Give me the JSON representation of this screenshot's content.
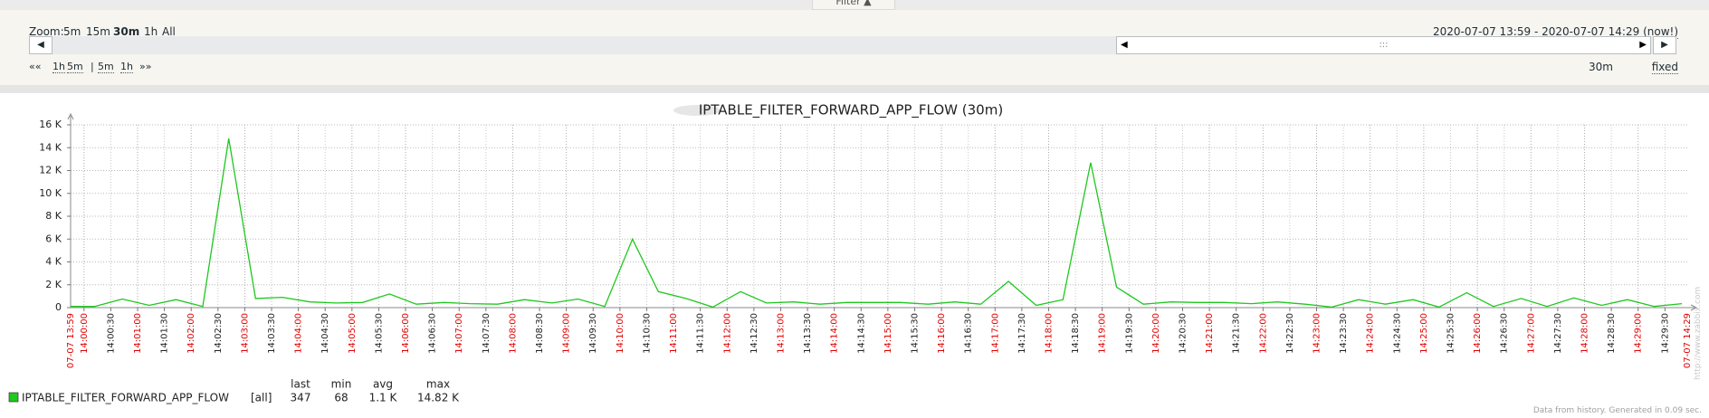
{
  "ui": {
    "filter_tab": "Filter ▲",
    "zoom_label": "Zoom:",
    "zoom_options": [
      "5m",
      "15m",
      "30m",
      "1h",
      "All"
    ],
    "zoom_active": 2,
    "range_from": "2020-07-07 13:59",
    "range_sep": " - ",
    "range_to": "2020-07-07 14:29",
    "range_now": "(now!)",
    "nav": [
      "««",
      "1h",
      "5m",
      "|",
      "5m",
      "1h",
      "»»"
    ],
    "period": "30m",
    "mode": "fixed",
    "footer": "Data from history. Generated in 0.09 sec.",
    "watermark": "http://www.zabbix.com"
  },
  "chart_data": {
    "type": "line",
    "title": "IPTABLE_FILTER_FORWARD_APP_FLOW (30m)",
    "x": [
      "13:59:45",
      "14:00:12",
      "14:00:43",
      "14:01:13",
      "14:01:43",
      "14:02:13",
      "14:02:42",
      "14:03:12",
      "14:03:42",
      "14:04:13",
      "14:04:42",
      "14:05:12",
      "14:05:42",
      "14:06:12",
      "14:06:43",
      "14:07:12",
      "14:07:43",
      "14:08:13",
      "14:08:44",
      "14:09:13",
      "14:09:43",
      "14:10:14",
      "14:10:43",
      "14:11:14",
      "14:11:44",
      "14:12:15",
      "14:12:44",
      "14:13:15",
      "14:13:44",
      "14:14:14",
      "14:14:45",
      "14:15:14",
      "14:15:45",
      "14:16:15",
      "14:16:44",
      "14:17:15",
      "14:17:46",
      "14:18:16",
      "14:18:47",
      "14:19:16",
      "14:19:46",
      "14:20:17",
      "14:20:46",
      "14:21:17",
      "14:21:47",
      "14:22:16",
      "14:22:47",
      "14:23:17",
      "14:23:47",
      "14:24:17",
      "14:24:48",
      "14:25:17",
      "14:25:48",
      "14:26:18",
      "14:26:49",
      "14:27:18",
      "14:27:48",
      "14:28:19",
      "14:28:48",
      "14:29:18",
      "14:29:49"
    ],
    "series": [
      {
        "name": "IPTABLE_FILTER_FORWARD_APP_FLOW",
        "color": "#1ec81e",
        "values": [
          100,
          100,
          750,
          200,
          700,
          100,
          14800,
          800,
          900,
          500,
          400,
          450,
          1200,
          300,
          450,
          350,
          300,
          700,
          400,
          750,
          100,
          6000,
          1400,
          800,
          50,
          1400,
          400,
          500,
          300,
          450,
          450,
          450,
          300,
          500,
          300,
          2300,
          200,
          700,
          12700,
          1800,
          300,
          500,
          450,
          450,
          350,
          500,
          300,
          50,
          700,
          300,
          700,
          50,
          1300,
          100,
          800,
          100,
          850,
          200,
          700,
          100,
          350
        ]
      }
    ],
    "xlim": [
      "13:59:45",
      "14:29:55"
    ],
    "xlim_labels": [
      "07-07 13:59",
      "07-07 14:29"
    ],
    "xticks": [
      "14:00:00",
      "14:00:30",
      "14:01:00",
      "14:01:30",
      "14:02:00",
      "14:02:30",
      "14:03:00",
      "14:03:30",
      "14:04:00",
      "14:04:30",
      "14:05:00",
      "14:05:30",
      "14:06:00",
      "14:06:30",
      "14:07:00",
      "14:07:30",
      "14:08:00",
      "14:08:30",
      "14:09:00",
      "14:09:30",
      "14:10:00",
      "14:10:30",
      "14:11:00",
      "14:11:30",
      "14:12:00",
      "14:12:30",
      "14:13:00",
      "14:13:30",
      "14:14:00",
      "14:14:30",
      "14:15:00",
      "14:15:30",
      "14:16:00",
      "14:16:30",
      "14:17:00",
      "14:17:30",
      "14:18:00",
      "14:18:30",
      "14:19:00",
      "14:19:30",
      "14:20:00",
      "14:20:30",
      "14:21:00",
      "14:21:30",
      "14:22:00",
      "14:22:30",
      "14:23:00",
      "14:23:30",
      "14:24:00",
      "14:24:30",
      "14:25:00",
      "14:25:30",
      "14:26:00",
      "14:26:30",
      "14:27:00",
      "14:27:30",
      "14:28:00",
      "14:28:30",
      "14:29:00",
      "14:29:30"
    ],
    "minute_tick_color": "#e00000",
    "ylim": [
      0,
      16000
    ],
    "yticks": [
      0,
      {
        "value": 2000,
        "label": "2 K"
      },
      {
        "value": 4000,
        "label": "4 K"
      },
      {
        "value": 6000,
        "label": "6 K"
      },
      {
        "value": 8000,
        "label": "8 K"
      },
      {
        "value": 10000,
        "label": "10 K"
      },
      {
        "value": 12000,
        "label": "12 K"
      },
      {
        "value": 14000,
        "label": "14 K"
      },
      {
        "value": 16000,
        "label": "16 K"
      }
    ],
    "grid": true,
    "legend_table": {
      "columns": [
        "last",
        "min",
        "avg",
        "max"
      ],
      "function": "[all]",
      "stats": [
        "347",
        "68",
        "1.1 K",
        "14.82 K"
      ]
    }
  }
}
